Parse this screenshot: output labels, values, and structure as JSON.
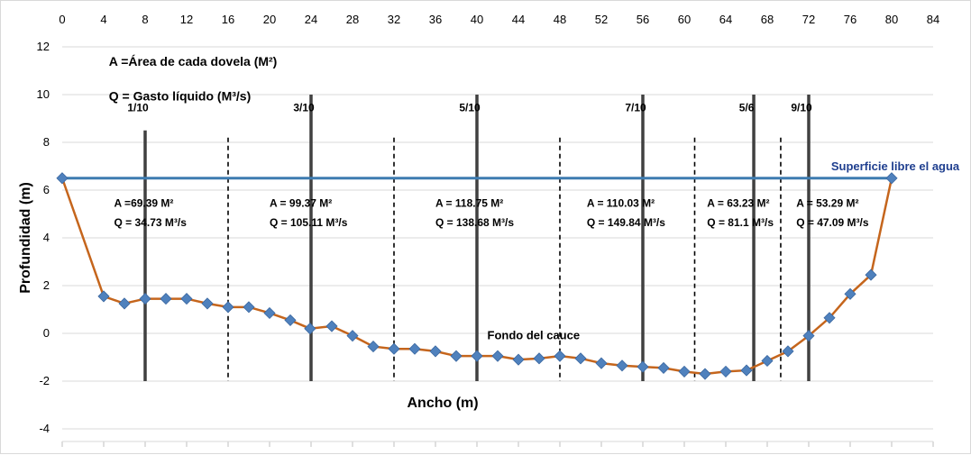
{
  "chart_data": {
    "type": "line",
    "title": "",
    "xlabel": "Ancho  (m)",
    "ylabel": "Profundidad  (m)",
    "xlim": [
      0,
      84
    ],
    "ylim": [
      -4,
      12
    ],
    "x_ticks": [
      0,
      4,
      8,
      12,
      16,
      20,
      24,
      28,
      32,
      36,
      40,
      44,
      48,
      52,
      56,
      60,
      64,
      68,
      72,
      76,
      80,
      84
    ],
    "y_ticks": [
      -4,
      -2,
      0,
      2,
      4,
      6,
      8,
      10,
      12
    ],
    "x_axis_position": "top",
    "legend_lines": [
      "A =Área de cada dovela (M²)",
      "Q = Gasto líquido (M³/s)"
    ],
    "series": [
      {
        "name": "Fondo del cauce",
        "color": "#c5651c",
        "marker_color": "#4f81bd",
        "x": [
          0,
          4,
          6,
          8,
          10,
          12,
          14,
          16,
          18,
          20,
          22,
          23.9,
          26,
          28,
          30,
          32,
          34,
          36,
          38,
          40,
          42,
          44,
          46,
          48,
          50,
          52,
          54,
          56,
          58,
          60,
          62,
          64,
          66,
          68,
          70,
          72,
          74,
          76,
          78,
          80
        ],
        "y": [
          6.5,
          1.55,
          1.25,
          1.45,
          1.45,
          1.45,
          1.25,
          1.1,
          1.1,
          0.85,
          0.55,
          0.2,
          0.3,
          -0.1,
          -0.55,
          -0.65,
          -0.65,
          -0.75,
          -0.95,
          -0.95,
          -0.95,
          -1.1,
          -1.05,
          -0.95,
          -1.05,
          -1.25,
          -1.35,
          -1.4,
          -1.45,
          -1.6,
          -1.7,
          -1.6,
          -1.55,
          -1.15,
          -0.75,
          -0.1,
          0.65,
          1.65,
          2.45,
          6.5
        ]
      }
    ],
    "water_surface": {
      "y": 6.5,
      "x_start": 0,
      "x_end": 80,
      "color": "#3e7cb1",
      "label": "Superficie libre el agua"
    },
    "verticals": [
      {
        "x": 8,
        "label": "1/10"
      },
      {
        "x": 24,
        "label": "3/10"
      },
      {
        "x": 40,
        "label": "5/10"
      },
      {
        "x": 56,
        "label": "7/10"
      },
      {
        "x": 66.7,
        "label": "5/6"
      },
      {
        "x": 72,
        "label": "9/10"
      }
    ],
    "dashed_lines": [
      16,
      32,
      48,
      61,
      69.3
    ],
    "segments": [
      {
        "area": "A =69.39 M²",
        "flow": "Q = 34.73 M³/s",
        "x": 5
      },
      {
        "area": "A = 99.37 M²",
        "flow": "Q = 105.11 M³/s",
        "x": 20
      },
      {
        "area": "A = 118.75 M²",
        "flow": "Q = 138.68 M³/s",
        "x": 36
      },
      {
        "area": "A = 110.03 M²",
        "flow": "Q = 149.84 M³/s",
        "x": 50.6
      },
      {
        "area": "A = 63.23 M²",
        "flow": "Q = 81.1 M³/s",
        "x": 62.2
      },
      {
        "area": "A = 53.29 M²",
        "flow": "Q = 47.09 M³/s",
        "x": 70.8
      }
    ],
    "annotations": [
      {
        "text": "Fondo del cauce",
        "x": 41,
        "y": -0.25
      }
    ]
  }
}
